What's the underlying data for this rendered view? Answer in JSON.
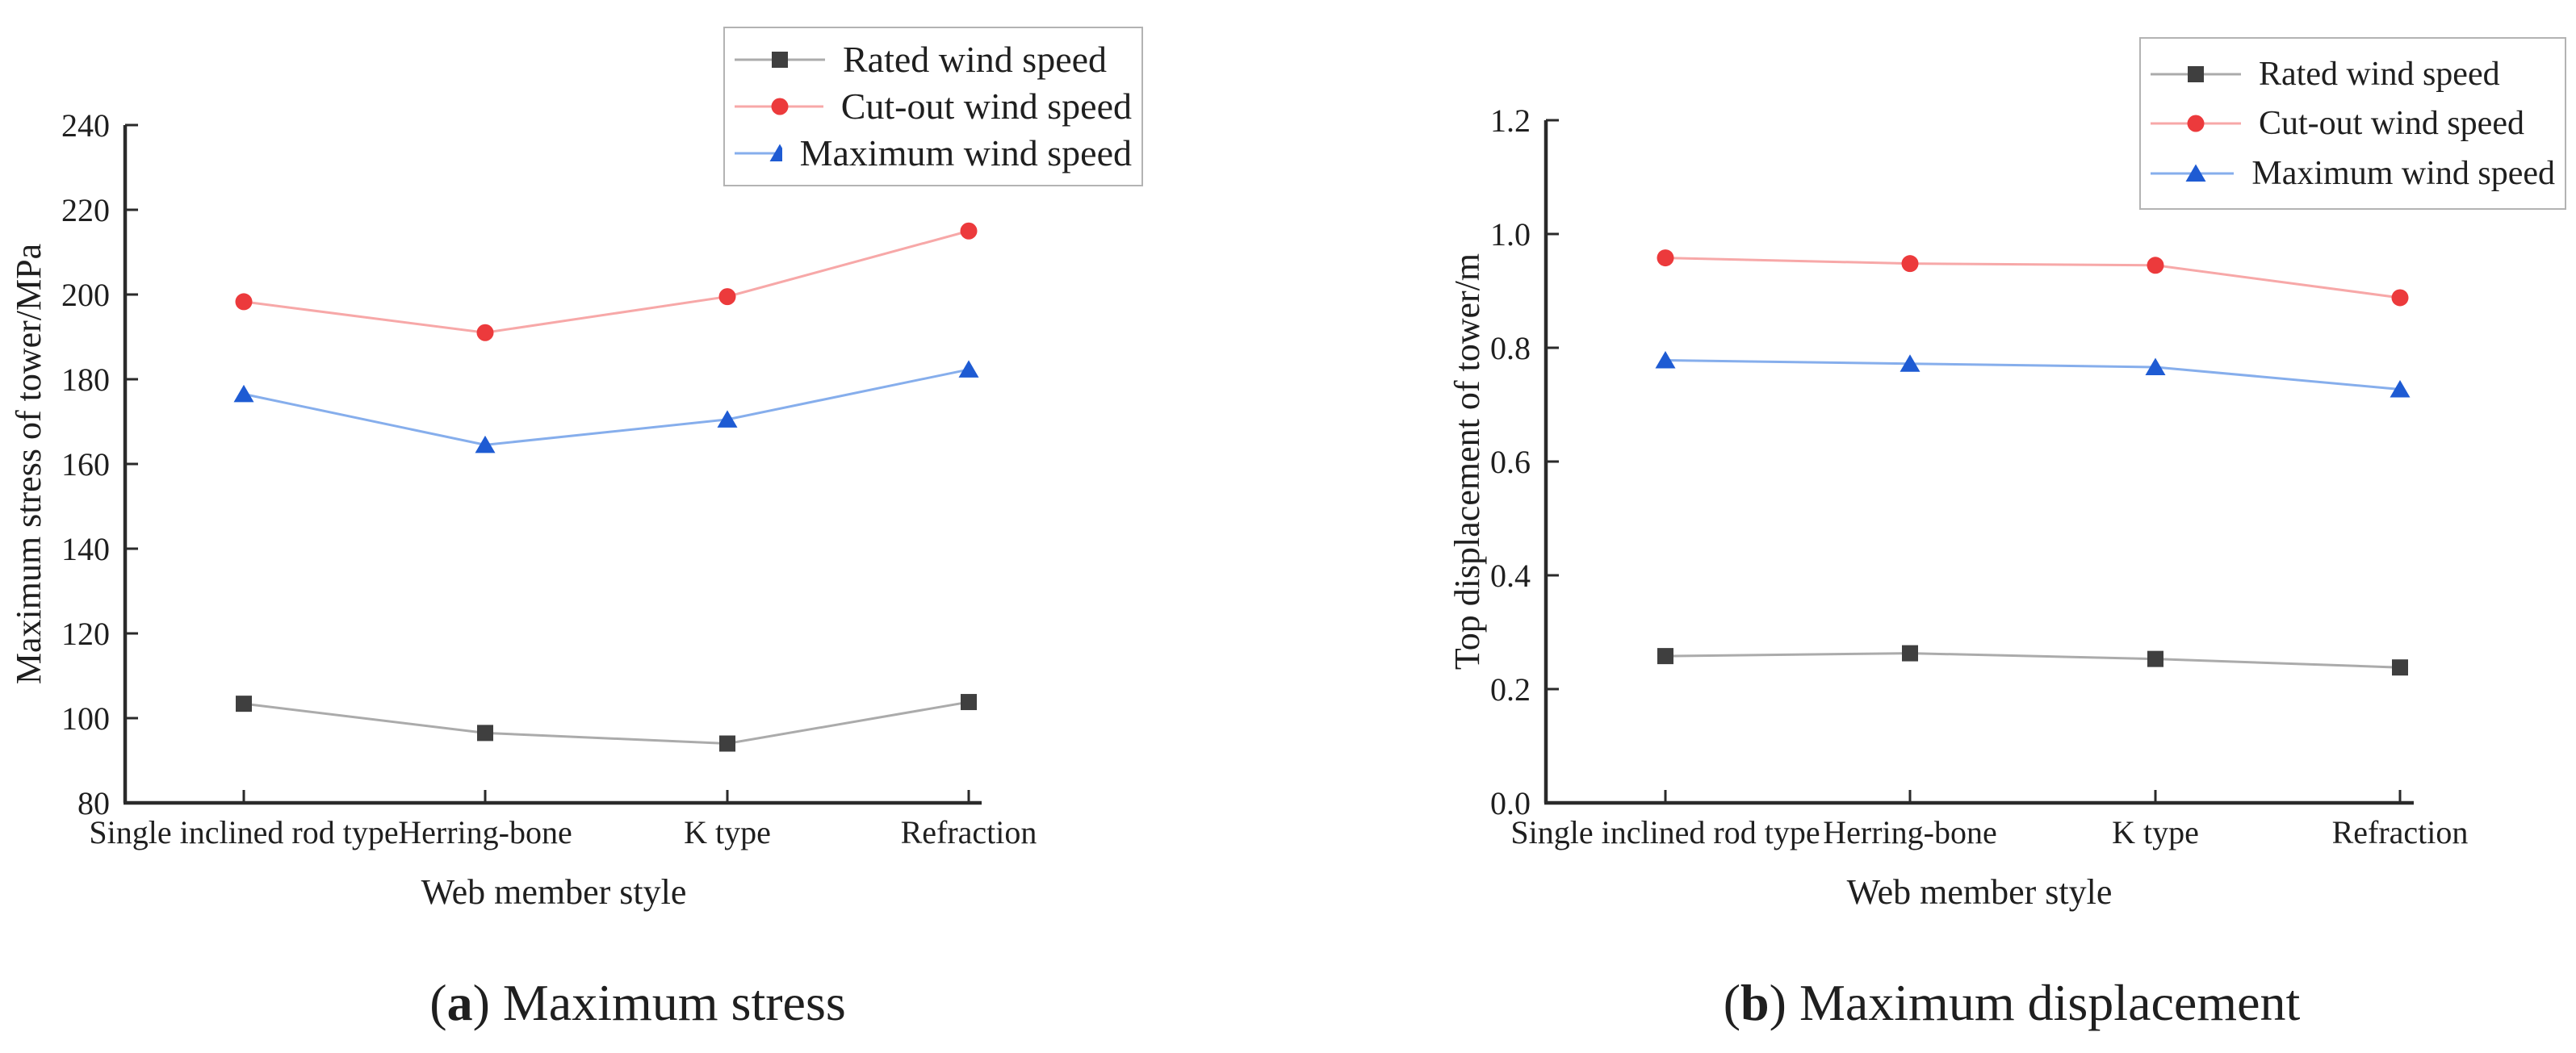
{
  "figure": {
    "background": "#ffffff",
    "text_color": "#1f1f1f",
    "axis_color": "#2a2a2a",
    "legend_border_color": "#b3b3b3"
  },
  "chart_data": [
    {
      "id": "a",
      "type": "line",
      "title": "",
      "xlabel": "Web member style",
      "ylabel": "Maximum stress of tower/MPa",
      "categories": [
        "Single inclined rod type",
        "Herring-bone",
        "K type",
        "Refraction"
      ],
      "ylim": [
        80,
        240
      ],
      "yticks": [
        80,
        100,
        120,
        140,
        160,
        180,
        200,
        220,
        240
      ],
      "ytick_labels": [
        "80",
        "100",
        "120",
        "140",
        "160",
        "180",
        "200",
        "220",
        "240"
      ],
      "grid": false,
      "legend_position": "top-right",
      "series": [
        {
          "name": "Rated wind speed",
          "marker": "square",
          "marker_color": "#3f3f3f",
          "line_color": "#ababab",
          "values": [
            103.4,
            96.5,
            94.0,
            103.8
          ]
        },
        {
          "name": "Cut-out wind speed",
          "marker": "circle",
          "marker_color": "#ec3a3c",
          "line_color": "#f7a8a8",
          "values": [
            198.3,
            191.0,
            199.5,
            215.0
          ]
        },
        {
          "name": "Maximum wind speed",
          "marker": "triangle",
          "marker_color": "#1e5bd3",
          "line_color": "#86aeec",
          "values": [
            176.5,
            164.5,
            170.5,
            182.3
          ]
        }
      ],
      "caption": {
        "bracket_open": "(",
        "letter": "a",
        "bracket_close": ")",
        "title": "Maximum stress"
      }
    },
    {
      "id": "b",
      "type": "line",
      "title": "",
      "xlabel": "Web member style",
      "ylabel": "Top displacement of tower/m",
      "categories": [
        "Single inclined rod type",
        "Herring-bone",
        "K type",
        "Refraction"
      ],
      "ylim": [
        0.0,
        1.2
      ],
      "yticks": [
        0.0,
        0.2,
        0.4,
        0.6,
        0.8,
        1.0,
        1.2
      ],
      "ytick_labels": [
        "0.0",
        "0.2",
        "0.4",
        "0.6",
        "0.8",
        "1.0",
        "1.2"
      ],
      "grid": false,
      "legend_position": "top-right",
      "series": [
        {
          "name": "Rated wind speed",
          "marker": "square",
          "marker_color": "#3f3f3f",
          "line_color": "#ababab",
          "values": [
            0.258,
            0.263,
            0.253,
            0.238
          ]
        },
        {
          "name": "Cut-out wind speed",
          "marker": "circle",
          "marker_color": "#ec3a3c",
          "line_color": "#f7a8a8",
          "values": [
            0.958,
            0.948,
            0.945,
            0.888
          ]
        },
        {
          "name": "Maximum wind speed",
          "marker": "triangle",
          "marker_color": "#1e5bd3",
          "line_color": "#86aeec",
          "values": [
            0.778,
            0.772,
            0.766,
            0.727
          ]
        }
      ],
      "caption": {
        "bracket_open": "(",
        "letter": "b",
        "bracket_close": ")",
        "title": "Maximum displacement"
      }
    }
  ]
}
